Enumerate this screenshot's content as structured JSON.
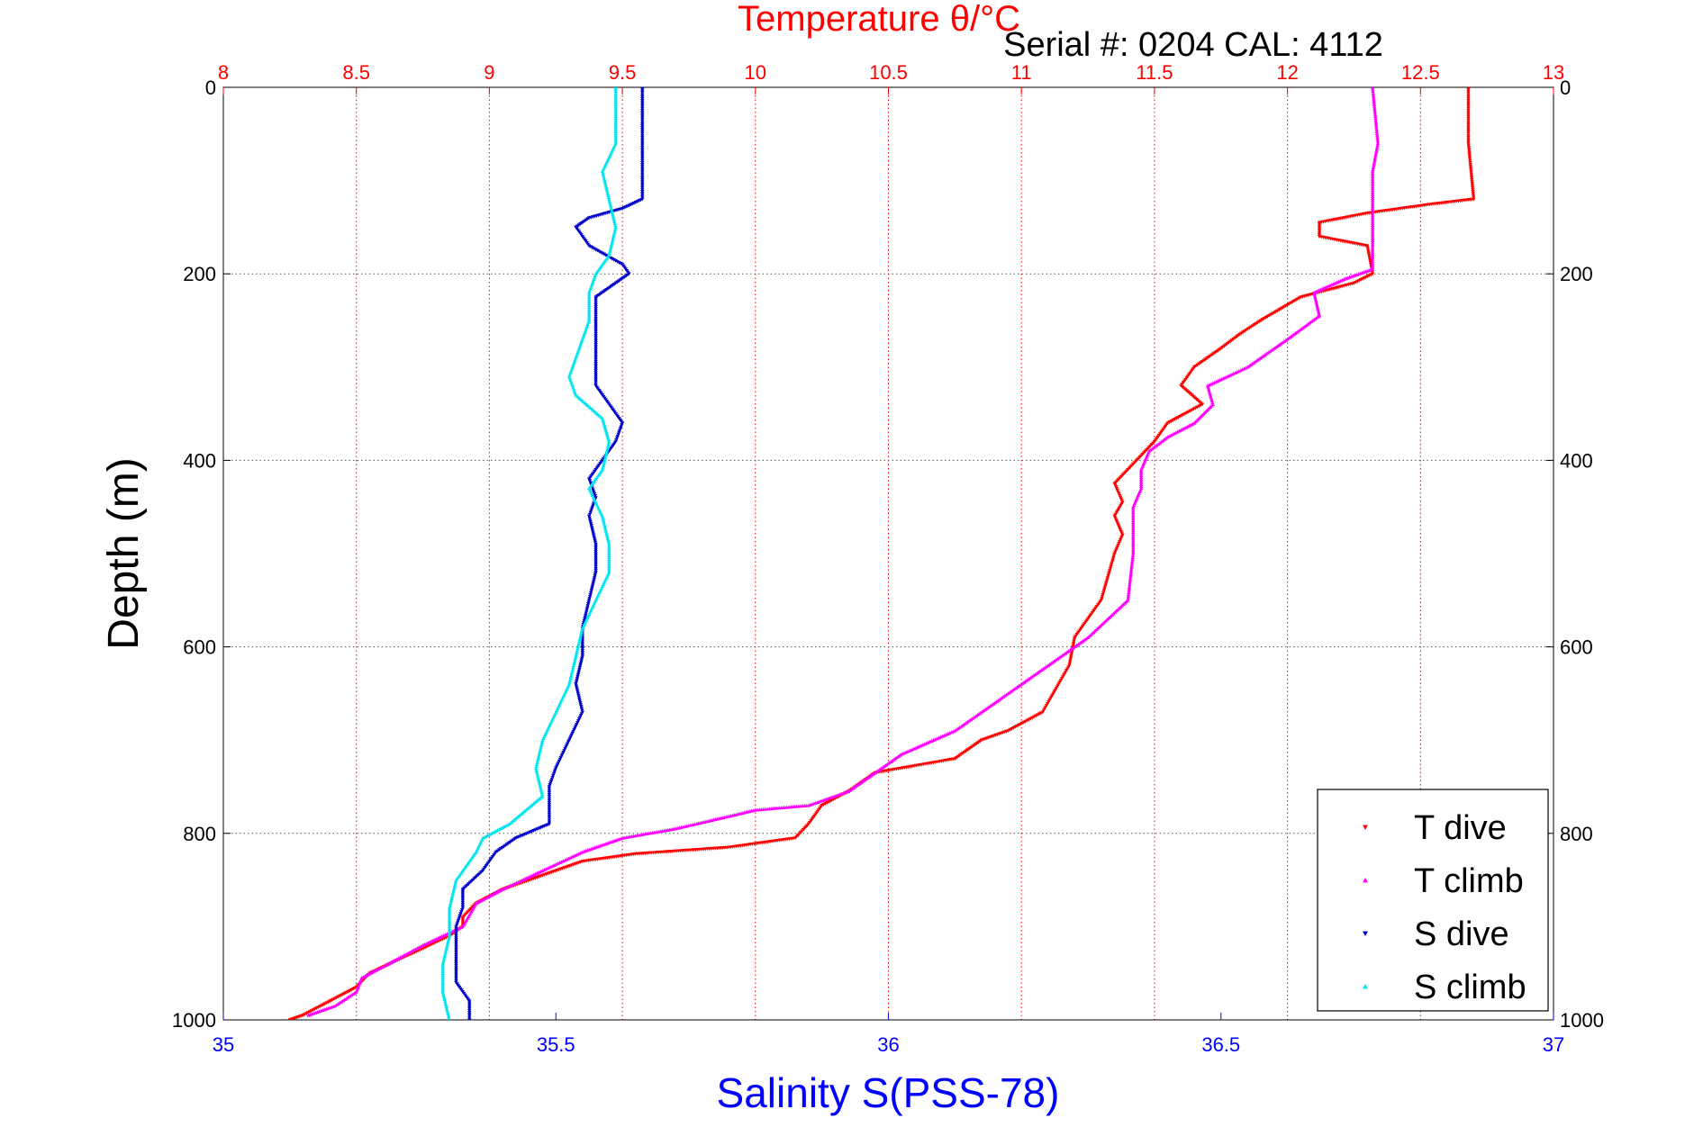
{
  "chart_data": {
    "type": "scatter",
    "title": "Temperature θ/°C",
    "subtitle": "Serial #: 0204  CAL: 4112",
    "ylabel": "Depth (m)",
    "xlabel": "Salinity S(PSS-78)",
    "x2label": "Temperature θ/°C",
    "ylim": [
      0,
      1000
    ],
    "y_reversed": true,
    "xlim_salinity": [
      35,
      37
    ],
    "xlim_temperature": [
      8,
      13
    ],
    "x_ticks_salinity": [
      "35",
      "35.5",
      "36",
      "36.5",
      "37"
    ],
    "x_ticks_temperature": [
      "8",
      "8.5",
      "9",
      "9.5",
      "10",
      "10.5",
      "11",
      "11.5",
      "12",
      "12.5",
      "13"
    ],
    "y_ticks": [
      "0",
      "200",
      "400",
      "600",
      "800",
      "1000"
    ],
    "grid": true,
    "legend_position": "bottom-right",
    "colors": {
      "t_dive": "#ff0000",
      "t_climb": "#ff00ff",
      "s_dive": "#0000cc",
      "s_climb": "#00e5ee",
      "salinity_axis": "#0000ff",
      "temperature_axis": "#ff0000"
    },
    "series": [
      {
        "name": "T dive",
        "axis": "temperature",
        "marker": "triangle-down",
        "points": [
          [
            12.68,
            0
          ],
          [
            12.68,
            60
          ],
          [
            12.7,
            120
          ],
          [
            12.55,
            125
          ],
          [
            12.3,
            135
          ],
          [
            12.12,
            145
          ],
          [
            12.12,
            160
          ],
          [
            12.3,
            170
          ],
          [
            12.32,
            200
          ],
          [
            12.25,
            210
          ],
          [
            12.05,
            225
          ],
          [
            11.9,
            250
          ],
          [
            11.82,
            265
          ],
          [
            11.75,
            280
          ],
          [
            11.65,
            300
          ],
          [
            11.6,
            320
          ],
          [
            11.68,
            340
          ],
          [
            11.55,
            360
          ],
          [
            11.5,
            380
          ],
          [
            11.45,
            395
          ],
          [
            11.4,
            410
          ],
          [
            11.35,
            425
          ],
          [
            11.38,
            445
          ],
          [
            11.35,
            460
          ],
          [
            11.38,
            480
          ],
          [
            11.35,
            500
          ],
          [
            11.32,
            530
          ],
          [
            11.3,
            550
          ],
          [
            11.25,
            570
          ],
          [
            11.2,
            590
          ],
          [
            11.18,
            620
          ],
          [
            11.12,
            650
          ],
          [
            11.08,
            670
          ],
          [
            10.95,
            690
          ],
          [
            10.85,
            700
          ],
          [
            10.75,
            720
          ],
          [
            10.45,
            735
          ],
          [
            10.35,
            755
          ],
          [
            10.25,
            770
          ],
          [
            10.2,
            790
          ],
          [
            10.15,
            805
          ],
          [
            9.9,
            815
          ],
          [
            9.55,
            822
          ],
          [
            9.35,
            830
          ],
          [
            9.2,
            845
          ],
          [
            9.05,
            860
          ],
          [
            8.95,
            875
          ],
          [
            8.9,
            890
          ],
          [
            8.9,
            900
          ],
          [
            8.85,
            910
          ],
          [
            8.7,
            930
          ],
          [
            8.55,
            950
          ],
          [
            8.5,
            965
          ],
          [
            8.4,
            980
          ],
          [
            8.3,
            995
          ],
          [
            8.25,
            1000
          ]
        ]
      },
      {
        "name": "T climb",
        "axis": "temperature",
        "marker": "triangle-up",
        "points": [
          [
            12.32,
            0
          ],
          [
            12.34,
            60
          ],
          [
            12.32,
            90
          ],
          [
            12.32,
            150
          ],
          [
            12.32,
            195
          ],
          [
            12.22,
            205
          ],
          [
            12.1,
            220
          ],
          [
            12.12,
            245
          ],
          [
            12.0,
            270
          ],
          [
            11.85,
            300
          ],
          [
            11.7,
            320
          ],
          [
            11.72,
            340
          ],
          [
            11.65,
            360
          ],
          [
            11.55,
            375
          ],
          [
            11.48,
            390
          ],
          [
            11.45,
            410
          ],
          [
            11.45,
            430
          ],
          [
            11.42,
            450
          ],
          [
            11.42,
            500
          ],
          [
            11.4,
            550
          ],
          [
            11.25,
            590
          ],
          [
            11.1,
            620
          ],
          [
            10.95,
            650
          ],
          [
            10.75,
            690
          ],
          [
            10.55,
            715
          ],
          [
            10.45,
            735
          ],
          [
            10.4,
            745
          ],
          [
            10.35,
            755
          ],
          [
            10.2,
            770
          ],
          [
            10.0,
            775
          ],
          [
            9.85,
            785
          ],
          [
            9.7,
            795
          ],
          [
            9.5,
            805
          ],
          [
            9.35,
            820
          ],
          [
            9.2,
            840
          ],
          [
            9.05,
            860
          ],
          [
            8.95,
            875
          ],
          [
            8.9,
            900
          ],
          [
            8.75,
            920
          ],
          [
            8.62,
            940
          ],
          [
            8.52,
            955
          ],
          [
            8.5,
            970
          ],
          [
            8.42,
            985
          ],
          [
            8.32,
            995
          ]
        ]
      },
      {
        "name": "S dive",
        "axis": "salinity",
        "marker": "triangle-down",
        "points": [
          [
            35.63,
            0
          ],
          [
            35.63,
            60
          ],
          [
            35.63,
            120
          ],
          [
            35.6,
            130
          ],
          [
            35.55,
            140
          ],
          [
            35.53,
            150
          ],
          [
            35.55,
            170
          ],
          [
            35.6,
            190
          ],
          [
            35.61,
            200
          ],
          [
            35.59,
            210
          ],
          [
            35.56,
            225
          ],
          [
            35.56,
            250
          ],
          [
            35.56,
            280
          ],
          [
            35.56,
            300
          ],
          [
            35.56,
            320
          ],
          [
            35.58,
            340
          ],
          [
            35.6,
            360
          ],
          [
            35.59,
            380
          ],
          [
            35.57,
            400
          ],
          [
            35.55,
            420
          ],
          [
            35.56,
            440
          ],
          [
            35.55,
            460
          ],
          [
            35.56,
            490
          ],
          [
            35.56,
            520
          ],
          [
            35.55,
            550
          ],
          [
            35.54,
            580
          ],
          [
            35.54,
            610
          ],
          [
            35.53,
            640
          ],
          [
            35.54,
            670
          ],
          [
            35.52,
            700
          ],
          [
            35.5,
            730
          ],
          [
            35.49,
            750
          ],
          [
            35.49,
            790
          ],
          [
            35.44,
            805
          ],
          [
            35.41,
            820
          ],
          [
            35.39,
            840
          ],
          [
            35.36,
            860
          ],
          [
            35.36,
            880
          ],
          [
            35.35,
            900
          ],
          [
            35.35,
            930
          ],
          [
            35.35,
            960
          ],
          [
            35.37,
            980
          ],
          [
            35.37,
            1000
          ]
        ]
      },
      {
        "name": "S climb",
        "axis": "salinity",
        "marker": "triangle-up",
        "points": [
          [
            35.59,
            0
          ],
          [
            35.59,
            60
          ],
          [
            35.57,
            90
          ],
          [
            35.59,
            150
          ],
          [
            35.58,
            180
          ],
          [
            35.56,
            200
          ],
          [
            35.55,
            220
          ],
          [
            35.55,
            250
          ],
          [
            35.54,
            270
          ],
          [
            35.53,
            290
          ],
          [
            35.52,
            310
          ],
          [
            35.53,
            330
          ],
          [
            35.57,
            355
          ],
          [
            35.58,
            380
          ],
          [
            35.57,
            410
          ],
          [
            35.55,
            430
          ],
          [
            35.57,
            460
          ],
          [
            35.58,
            490
          ],
          [
            35.58,
            520
          ],
          [
            35.56,
            550
          ],
          [
            35.54,
            580
          ],
          [
            35.53,
            610
          ],
          [
            35.52,
            640
          ],
          [
            35.5,
            670
          ],
          [
            35.48,
            700
          ],
          [
            35.47,
            730
          ],
          [
            35.48,
            760
          ],
          [
            35.43,
            790
          ],
          [
            35.39,
            805
          ],
          [
            35.38,
            820
          ],
          [
            35.35,
            850
          ],
          [
            35.34,
            880
          ],
          [
            35.34,
            910
          ],
          [
            35.33,
            940
          ],
          [
            35.33,
            970
          ],
          [
            35.34,
            1000
          ]
        ]
      }
    ]
  }
}
